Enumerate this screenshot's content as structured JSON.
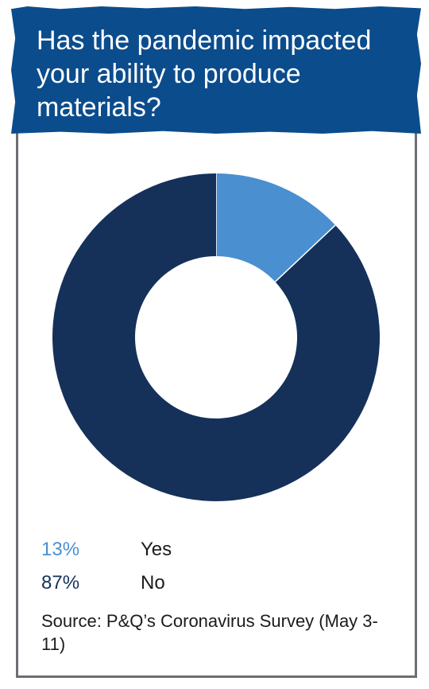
{
  "chart_data": {
    "type": "pie",
    "title": "Has the pandemic impacted your ability to produce materials?",
    "categories": [
      "Yes",
      "No"
    ],
    "values": [
      13,
      87
    ],
    "value_labels": [
      "13%",
      "87%"
    ],
    "colors": [
      "#4a8fd0",
      "#15315a"
    ],
    "donut": true,
    "legend_position": "bottom-left"
  },
  "source": "Source: P&Q’s Coronavirus Survey (May 3-11)"
}
